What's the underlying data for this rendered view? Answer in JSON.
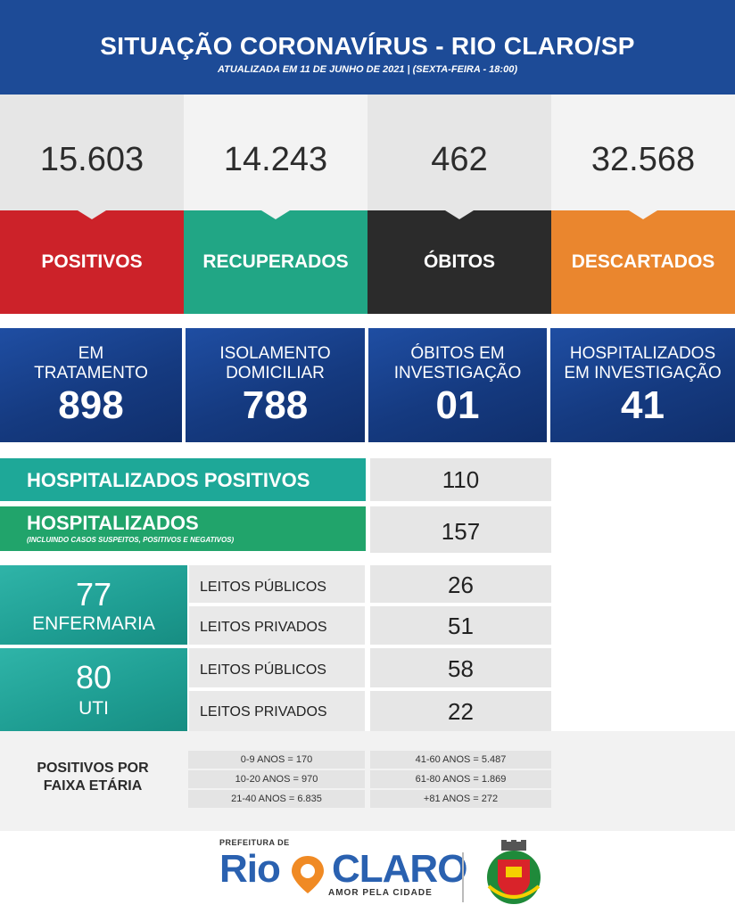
{
  "header": {
    "title": "SITUAÇÃO CORONAVÍRUS - RIO CLARO/SP",
    "subtitle": "ATUALIZADA EM 11 DE JUNHO DE 2021 | (SEXTA-FEIRA - 18:00)"
  },
  "top_stats": [
    {
      "value": "15.603",
      "label": "POSITIVOS",
      "color": "#cc2229"
    },
    {
      "value": "14.243",
      "label": "RECUPERADOS",
      "color": "#21a685"
    },
    {
      "value": "462",
      "label": "ÓBITOS",
      "color": "#2b2b2b"
    },
    {
      "value": "32.568",
      "label": "DESCARTADOS",
      "color": "#ea862e"
    }
  ],
  "tiles": [
    {
      "label_1": "EM",
      "label_2": "TRATAMENTO",
      "value": "898"
    },
    {
      "label_1": "ISOLAMENTO",
      "label_2": "DOMICILIAR",
      "value": "788"
    },
    {
      "label_1": "ÓBITOS EM",
      "label_2": "INVESTIGAÇÃO",
      "value": "01"
    },
    {
      "label_1": "HOSPITALIZADOS",
      "label_2": "EM INVESTIGAÇÃO",
      "value": "41"
    }
  ],
  "hospitalizados_positivos": {
    "label": "HOSPITALIZADOS POSITIVOS",
    "value": "110",
    "color": "#1ea898"
  },
  "hospitalizados": {
    "label": "HOSPITALIZADOS",
    "note": "(INCLUINDO CASOS SUSPEITOS, POSITIVOS E NEGATIVOS)",
    "value": "157",
    "color": "#21a46b"
  },
  "enfermaria": {
    "value": "77",
    "label": "ENFERMARIA",
    "publicos_label": "LEITOS PÚBLICOS",
    "publicos_value": "26",
    "privados_label": "LEITOS PRIVADOS",
    "privados_value": "51"
  },
  "uti": {
    "value": "80",
    "label": "UTI",
    "publicos_label": "LEITOS PÚBLICOS",
    "publicos_value": "58",
    "privados_label": "LEITOS PRIVADOS",
    "privados_value": "22"
  },
  "faixa_etaria": {
    "title_1": "POSITIVOS POR",
    "title_2": "FAIXA ETÁRIA",
    "left": [
      "0-9 ANOS = 170",
      "10-20 ANOS = 970",
      "21-40 ANOS = 6.835"
    ],
    "right": [
      "41-60 ANOS = 5.487",
      "61-80 ANOS = 1.869",
      "+81 ANOS = 272"
    ]
  },
  "footer": {
    "prefeitura": "PREFEITURA DE",
    "rio": "Rio",
    "claro": "CLARO",
    "slogan": "AMOR PELA CIDADE"
  }
}
